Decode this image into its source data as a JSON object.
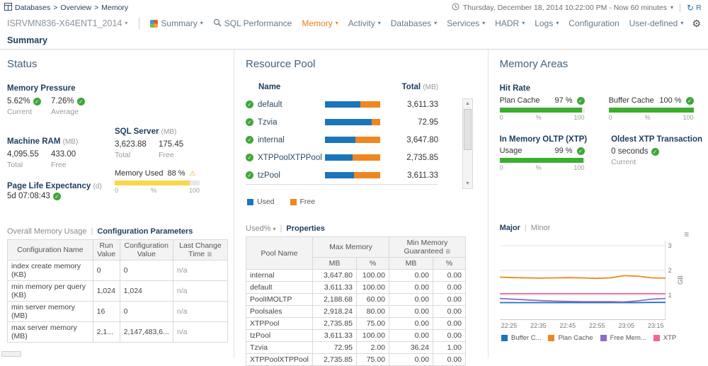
{
  "icons": {
    "check": "✓",
    "warning": "⚠",
    "gear": "⚙",
    "caret": "▾",
    "scroll_up": "▲",
    "scroll_down": "▼",
    "menu": "≣",
    "crumb_sep": ">",
    "pipe": "|",
    "refresh": "↻"
  },
  "colors": {
    "used_blue": "#1b75bb",
    "free_orange": "#ef8621",
    "green": "#3cae2e",
    "yellow": "#f8d84a",
    "active_orange": "#ee7d18"
  },
  "breadcrumb": {
    "parts": [
      "Databases",
      "Overview",
      "Memory"
    ]
  },
  "topbar": {
    "time_range": "Thursday, December 18, 2014 10:22:00 PM - Now 60 minutes",
    "refresh_label": "R"
  },
  "nav": {
    "server": "ISRVMN836-X64ENT1_2014",
    "items": [
      {
        "label": "Summary"
      },
      {
        "label": "SQL Performance"
      },
      {
        "label": "Memory"
      },
      {
        "label": "Activity"
      },
      {
        "label": "Databases"
      },
      {
        "label": "Services"
      },
      {
        "label": "HADR"
      },
      {
        "label": "Logs"
      },
      {
        "label": "Configuration"
      },
      {
        "label": "User-defined"
      }
    ]
  },
  "page_title": "Summary",
  "gauge_scale": {
    "min": "0",
    "mid": "%",
    "max": "100"
  },
  "status": {
    "title": "Status",
    "memory_pressure": {
      "label": "Memory Pressure",
      "current": "5.62%",
      "average": "7.26%",
      "current_label": "Current",
      "average_label": "Average"
    },
    "machine_ram": {
      "label": "Machine RAM",
      "unit": "(MB)",
      "total": "4,095.55",
      "free": "433.00",
      "total_label": "Total",
      "free_label": "Free"
    },
    "sql_server": {
      "label": "SQL Server",
      "unit": "(MB)",
      "total": "3,623.88",
      "free": "175.45",
      "total_label": "Total",
      "free_label": "Free"
    },
    "memory_used": {
      "label": "Memory Used",
      "value": "88 %",
      "pct": 88
    },
    "page_life": {
      "label": "Page Life Expectancy",
      "unit": "(d)",
      "value": "5d 07:08:43"
    },
    "views": {
      "overall": "Overall Memory Usage",
      "config": "Configuration Parameters"
    },
    "table": {
      "headers": [
        "Configuration Name",
        "Run Value",
        "Configuration Value",
        "Last Change Time"
      ],
      "rows": [
        [
          "index create memory (KB)",
          "0",
          "0",
          "n/a"
        ],
        [
          "min memory per query (KB)",
          "1,024",
          "1,024",
          "n/a"
        ],
        [
          "min server memory (MB)",
          "16",
          "0",
          "n/a"
        ],
        [
          "max server memory (MB)",
          "2,1...",
          "2,147,483,6...",
          "n/a"
        ]
      ]
    }
  },
  "resource_pool": {
    "title": "Resource Pool",
    "name_header": "Name",
    "total_header": "Total",
    "total_unit": "(MB)",
    "rows": [
      {
        "name": "default",
        "total": "3,611.33",
        "used_pct": 64
      },
      {
        "name": "Tzvia",
        "total": "72.95",
        "used_pct": 84
      },
      {
        "name": "internal",
        "total": "3,647.80",
        "used_pct": 55
      },
      {
        "name": "XTPPoolXTPPool",
        "total": "2,735.85",
        "used_pct": 50
      },
      {
        "name": "tzPool",
        "total": "3,611.33",
        "used_pct": 53
      }
    ],
    "legend": {
      "used": "Used",
      "free": "Free"
    },
    "views": {
      "sort": "Used%",
      "properties": "Properties"
    },
    "table": {
      "col_pool": "Pool Name",
      "group_max": "Max Memory",
      "group_min": "Min Memory Guaranteed",
      "sub_mb": "MB",
      "sub_pct": "%",
      "rows": [
        [
          "internal",
          "3,647.80",
          "100.00",
          "0.00",
          "0.00"
        ],
        [
          "default",
          "3,611.33",
          "100.00",
          "0.00",
          "0.00"
        ],
        [
          "PoolIMOLTP",
          "2,188.68",
          "60.00",
          "0.00",
          "0.00"
        ],
        [
          "Poolsales",
          "2,918.24",
          "80.00",
          "0.00",
          "0.00"
        ],
        [
          "XTPPool",
          "2,735.85",
          "75.00",
          "0.00",
          "0.00"
        ],
        [
          "tzPool",
          "3,611.33",
          "100.00",
          "0.00",
          "0.00"
        ],
        [
          "Tzvia",
          "72.95",
          "2.00",
          "36.24",
          "1.00"
        ],
        [
          "XTPPoolXTPPool",
          "2,735.85",
          "75.00",
          "0.00",
          "0.00"
        ]
      ]
    }
  },
  "memory_areas": {
    "title": "Memory Areas",
    "hit_rate_label": "Hit Rate",
    "plan_cache": {
      "label": "Plan Cache",
      "value": "97 %",
      "pct": 97
    },
    "buffer_cache": {
      "label": "Buffer Cache",
      "value": "100 %",
      "pct": 100
    },
    "oltp_label": "In Memory OLTP (XTP)",
    "xtp_usage": {
      "label": "Usage",
      "value": "99 %",
      "pct": 99
    },
    "oldest_xtp": {
      "label": "Oldest XTP Transaction",
      "value": "0 seconds",
      "sub": "Current"
    },
    "views": {
      "major": "Major",
      "minor": "Minor"
    },
    "chart_data": {
      "type": "line",
      "ylabel": "GB",
      "ymin": 0,
      "ymax": 3.2,
      "yticks": [
        1,
        2,
        3
      ],
      "xlabels": [
        "22:25",
        "22:35",
        "22:45",
        "22:55",
        "23:05",
        "23:15"
      ],
      "series": [
        {
          "name": "Buffer C...",
          "color": "#1b75bb",
          "values": [
            0.7,
            0.7,
            0.7,
            0.7,
            0.7,
            0.7,
            0.7,
            0.7,
            0.7,
            0.7,
            0.7,
            0.71,
            0.71
          ]
        },
        {
          "name": "Plan Cache",
          "color": "#ef8621",
          "values": [
            1.73,
            1.71,
            1.7,
            1.69,
            1.7,
            1.71,
            1.7,
            1.68,
            1.7,
            1.79,
            1.77,
            1.7,
            1.69
          ]
        },
        {
          "name": "Free Mem...",
          "color": "#8c6bc8",
          "values": [
            0.87,
            0.84,
            0.81,
            0.78,
            0.76,
            0.75,
            0.74,
            0.74,
            0.74,
            0.73,
            0.77,
            0.84,
            0.87
          ]
        },
        {
          "name": "XTP",
          "color": "#f2639b",
          "values": [
            1.06,
            1.06,
            1.06,
            1.06,
            1.06,
            1.06,
            1.06,
            1.06,
            1.06,
            1.06,
            1.06,
            1.06,
            1.06
          ]
        }
      ]
    }
  }
}
